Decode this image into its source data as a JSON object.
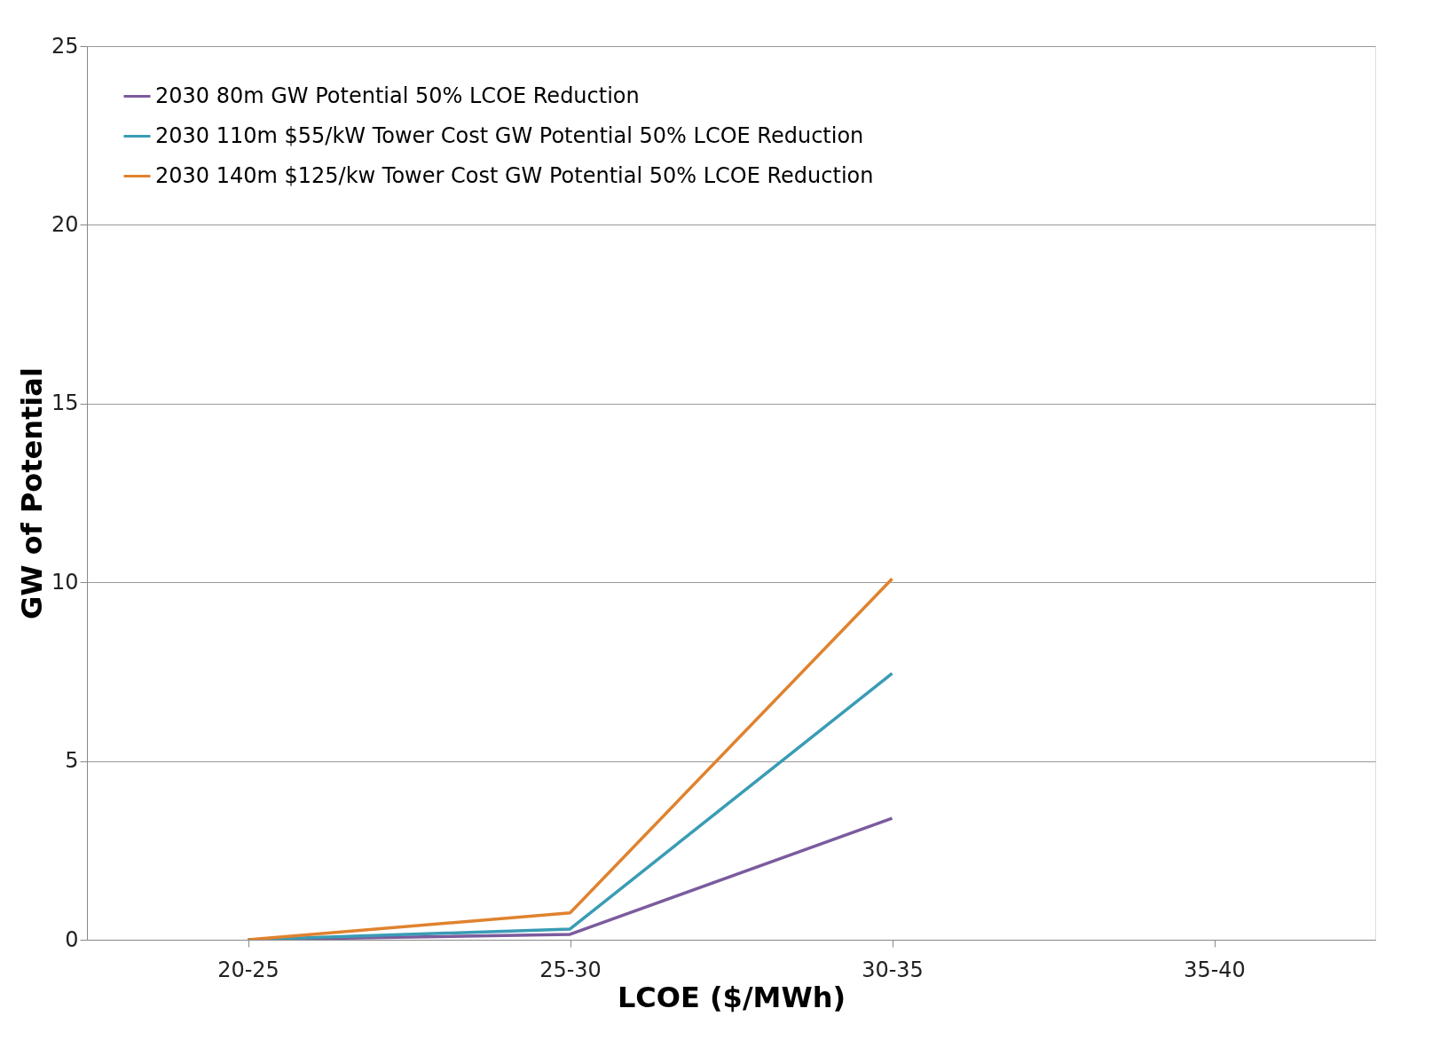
{
  "chart_data": {
    "type": "line",
    "xlabel": "LCOE ($/MWh)",
    "ylabel": "GW of Potential",
    "categories": [
      "20-25",
      "25-30",
      "30-35",
      "35-40"
    ],
    "ylim": [
      0,
      25
    ],
    "yticks": [
      0,
      5,
      10,
      15,
      20,
      25
    ],
    "grid": "y",
    "legend": "top left",
    "marker": "none",
    "line_style": "solid",
    "series": [
      {
        "name": "2030 80m GW Potential 50% LCOE Reduction",
        "color": "#7b5b9e",
        "values": [
          0,
          0.15,
          3.4,
          null
        ]
      },
      {
        "name": "2030 110m $55/kW Tower Cost GW Potential 50% LCOE Reduction",
        "color": "#3a9cb5",
        "values": [
          0,
          0.3,
          7.45,
          null
        ]
      },
      {
        "name": "2030 140m $125/kw Tower Cost GW Potential 50% LCOE Reduction",
        "color": "#e0822e",
        "values": [
          0,
          0.75,
          10.1,
          null
        ]
      }
    ]
  }
}
